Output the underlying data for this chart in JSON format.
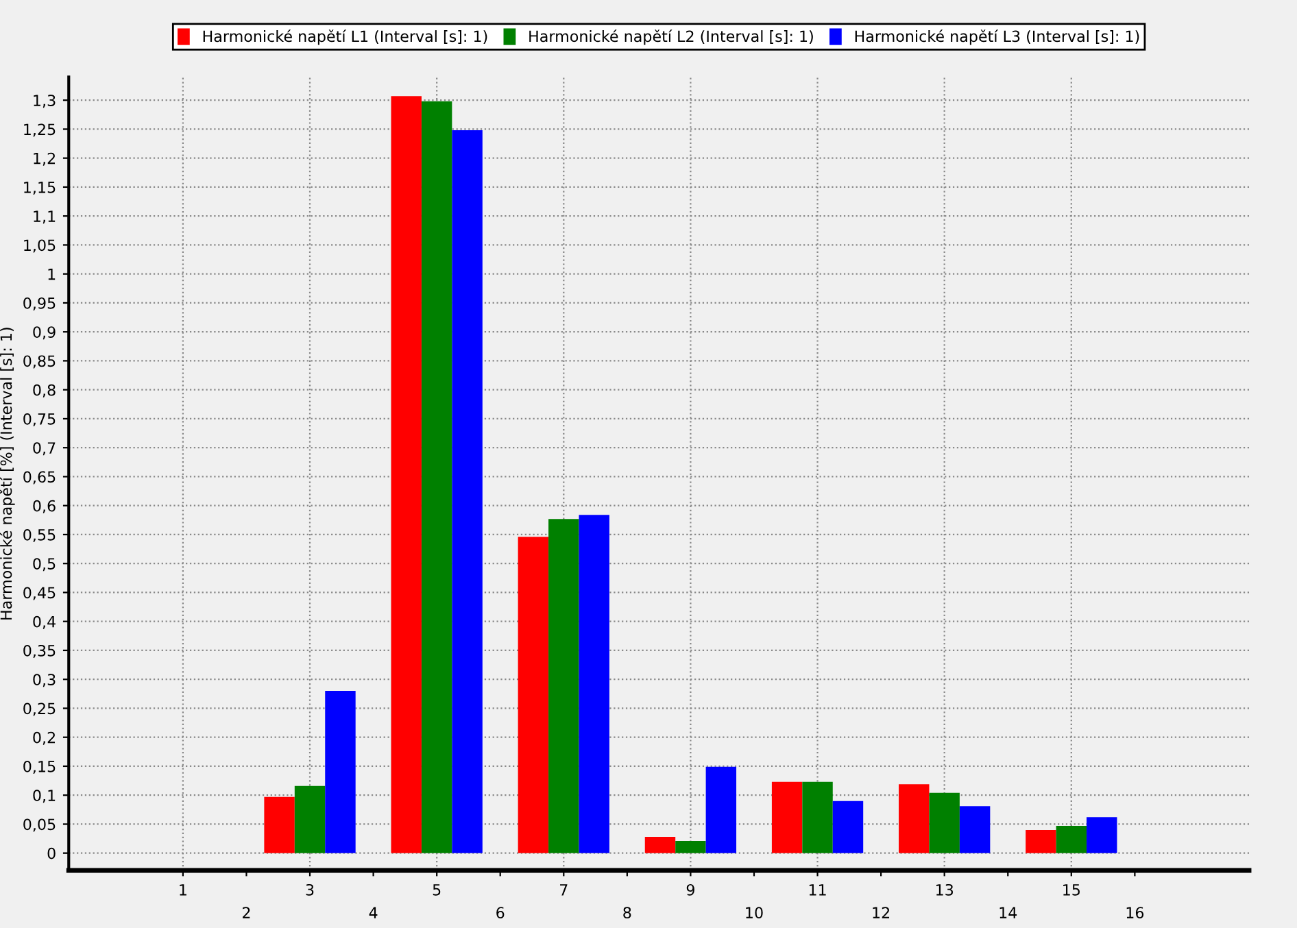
{
  "chart_data": {
    "type": "bar",
    "ylabel": "Harmonické napětí [%] (Interval [s]: 1)",
    "categories": [
      "1",
      "2",
      "3",
      "4",
      "5",
      "6",
      "7",
      "8",
      "9",
      "10",
      "11",
      "12",
      "13",
      "14",
      "15",
      "16"
    ],
    "series": [
      {
        "name": "Harmonické napětí L1 (Interval [s]: 1)",
        "color": "#ff0000",
        "values": [
          null,
          null,
          0.097,
          null,
          1.307,
          null,
          0.546,
          null,
          0.028,
          null,
          0.123,
          null,
          0.119,
          null,
          0.04,
          null
        ]
      },
      {
        "name": "Harmonické napětí L2 (Interval [s]: 1)",
        "color": "#008000",
        "values": [
          null,
          null,
          0.116,
          null,
          1.298,
          null,
          0.577,
          null,
          0.021,
          null,
          0.123,
          null,
          0.104,
          null,
          0.047,
          null
        ]
      },
      {
        "name": "Harmonické napětí L3 (Interval [s]: 1)",
        "color": "#0000ff",
        "values": [
          null,
          null,
          0.28,
          null,
          1.248,
          null,
          0.584,
          null,
          0.149,
          null,
          0.09,
          null,
          0.081,
          null,
          0.062,
          null
        ]
      }
    ],
    "ylim": [
      -0.03,
      1.34
    ],
    "yticks": [
      0,
      {
        "value": 0.05,
        "label": "0,05"
      },
      {
        "value": 0.1,
        "label": "0,1"
      },
      {
        "value": 0.15,
        "label": "0,15"
      },
      {
        "value": 0.2,
        "label": "0,2"
      },
      {
        "value": 0.25,
        "label": "0,25"
      },
      {
        "value": 0.3,
        "label": "0,3"
      },
      {
        "value": 0.35,
        "label": "0,35"
      },
      {
        "value": 0.4,
        "label": "0,4"
      },
      {
        "value": 0.45,
        "label": "0,45"
      },
      {
        "value": 0.5,
        "label": "0,5"
      },
      {
        "value": 0.55,
        "label": "0,55"
      },
      {
        "value": 0.6,
        "label": "0,6"
      },
      {
        "value": 0.65,
        "label": "0,65"
      },
      {
        "value": 0.7,
        "label": "0,7"
      },
      {
        "value": 0.75,
        "label": "0,75"
      },
      {
        "value": 0.8,
        "label": "0,8"
      },
      {
        "value": 0.85,
        "label": "0,85"
      },
      {
        "value": 0.9,
        "label": "0,9"
      },
      {
        "value": 0.95,
        "label": "0,95"
      },
      1,
      {
        "value": 1.05,
        "label": "1,05"
      },
      {
        "value": 1.1,
        "label": "1,1"
      },
      {
        "value": 1.15,
        "label": "1,15"
      },
      {
        "value": 1.2,
        "label": "1,2"
      },
      {
        "value": 1.25,
        "label": "1,25"
      },
      {
        "value": 1.3,
        "label": "1,3"
      }
    ],
    "grid": true,
    "legend": "top"
  }
}
